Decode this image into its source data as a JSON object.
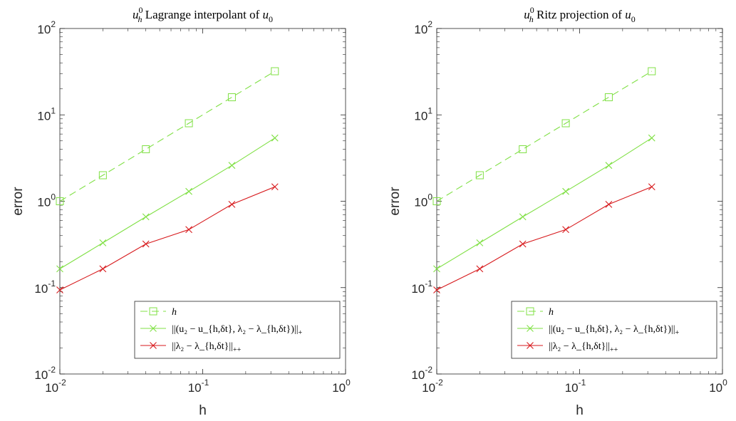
{
  "chart_data": [
    {
      "type": "line",
      "title_parts": {
        "sym": "u",
        "sup": "0",
        "sub": "h",
        "text": " Lagrange interpolant of ",
        "sym2": "u",
        "sub2": "0"
      },
      "xlabel": "h",
      "ylabel": "error",
      "xscale": "log",
      "yscale": "log",
      "xlim": [
        0.01,
        1
      ],
      "ylim": [
        0.01,
        100
      ],
      "grid": false,
      "legend_position": "bottom-right",
      "x_ticks": [
        {
          "base": "10",
          "exp": "-2"
        },
        {
          "base": "10",
          "exp": "-1"
        },
        {
          "base": "10",
          "exp": "0"
        }
      ],
      "y_ticks": [
        {
          "base": "10",
          "exp": "-2"
        },
        {
          "base": "10",
          "exp": "-1"
        },
        {
          "base": "10",
          "exp": "0"
        },
        {
          "base": "10",
          "exp": "1"
        },
        {
          "base": "10",
          "exp": "2"
        }
      ],
      "series": [
        {
          "legend_main": "h",
          "legend_sub": "",
          "color": "#80e045",
          "dash": true,
          "marker": "square",
          "x": [
            0.01,
            0.02,
            0.04,
            0.08,
            0.16,
            0.32
          ],
          "y": [
            1.0,
            2.0,
            4.0,
            8.0,
            16.0,
            32.0
          ]
        },
        {
          "legend_main": "||(u₂ − u_{h,δt}, λ₂ − λ_{h,δt})||",
          "legend_sub": "+",
          "color": "#80e045",
          "dash": false,
          "marker": "x",
          "x": [
            0.01,
            0.02,
            0.04,
            0.08,
            0.16,
            0.32
          ],
          "y": [
            0.165,
            0.33,
            0.66,
            1.3,
            2.6,
            5.4
          ]
        },
        {
          "legend_main": "||λ₂ − λ_{h,δt}||",
          "legend_sub": "++",
          "color": "#d7191c",
          "dash": false,
          "marker": "x",
          "x": [
            0.01,
            0.02,
            0.04,
            0.08,
            0.16,
            0.32
          ],
          "y": [
            0.094,
            0.165,
            0.32,
            0.47,
            0.92,
            1.47
          ]
        }
      ]
    },
    {
      "type": "line",
      "title_parts": {
        "sym": "u",
        "sup": "0",
        "sub": "h",
        "text": " Ritz projection of ",
        "sym2": "u",
        "sub2": "0"
      },
      "xlabel": "h",
      "ylabel": "error",
      "xscale": "log",
      "yscale": "log",
      "xlim": [
        0.01,
        1
      ],
      "ylim": [
        0.01,
        100
      ],
      "grid": false,
      "legend_position": "bottom-right",
      "x_ticks": [
        {
          "base": "10",
          "exp": "-2"
        },
        {
          "base": "10",
          "exp": "-1"
        },
        {
          "base": "10",
          "exp": "0"
        }
      ],
      "y_ticks": [
        {
          "base": "10",
          "exp": "-2"
        },
        {
          "base": "10",
          "exp": "-1"
        },
        {
          "base": "10",
          "exp": "0"
        },
        {
          "base": "10",
          "exp": "1"
        },
        {
          "base": "10",
          "exp": "2"
        }
      ],
      "series": [
        {
          "legend_main": "h",
          "legend_sub": "",
          "color": "#80e045",
          "dash": true,
          "marker": "square",
          "x": [
            0.01,
            0.02,
            0.04,
            0.08,
            0.16,
            0.32
          ],
          "y": [
            1.0,
            2.0,
            4.0,
            8.0,
            16.0,
            32.0
          ]
        },
        {
          "legend_main": "||(u₂ − u_{h,δt}, λ₂ − λ_{h,δt})||",
          "legend_sub": "+",
          "color": "#80e045",
          "dash": false,
          "marker": "x",
          "x": [
            0.01,
            0.02,
            0.04,
            0.08,
            0.16,
            0.32
          ],
          "y": [
            0.165,
            0.33,
            0.66,
            1.3,
            2.6,
            5.4
          ]
        },
        {
          "legend_main": "||λ₂ − λ_{h,δt}||",
          "legend_sub": "++",
          "color": "#d7191c",
          "dash": false,
          "marker": "x",
          "x": [
            0.01,
            0.02,
            0.04,
            0.08,
            0.16,
            0.32
          ],
          "y": [
            0.094,
            0.165,
            0.32,
            0.47,
            0.92,
            1.47
          ]
        }
      ]
    }
  ]
}
